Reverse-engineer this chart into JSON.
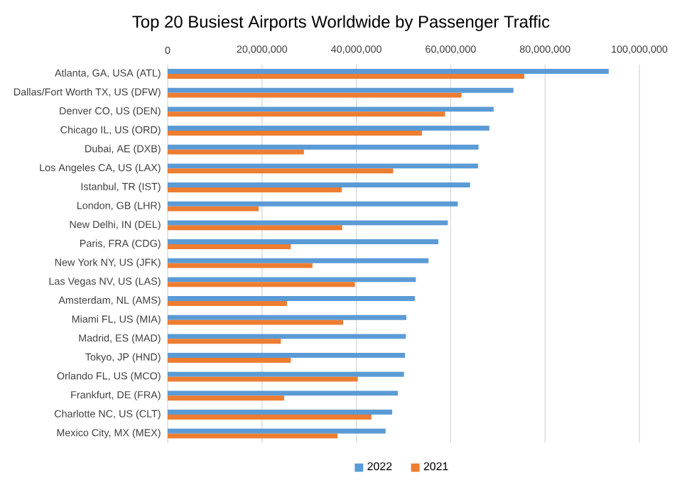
{
  "chart_data": {
    "type": "bar",
    "orientation": "horizontal",
    "title": "Top 20 Busiest Airports Worldwide by Passenger Traffic",
    "categories": [
      "Atlanta, GA, USA (ATL)",
      "Dallas/Fort Worth TX, US (DFW)",
      "Denver CO, US (DEN)",
      "Chicago IL, US (ORD)",
      "Dubai, AE (DXB)",
      "Los Angeles CA, US (LAX)",
      "Istanbul, TR (IST)",
      "London, GB (LHR)",
      "New Delhi, IN (DEL)",
      "Paris, FRA (CDG)",
      "New York NY, US (JFK)",
      "Las Vegas NV, US (LAS)",
      "Amsterdam, NL (AMS)",
      "Miami FL, US (MIA)",
      "Madrid, ES (MAD)",
      "Tokyo, JP (HND)",
      "Orlando FL, US (MCO)",
      "Frankfurt, DE (FRA)",
      "Charlotte NC, US (CLT)",
      "Mexico City, MX (MEX)"
    ],
    "series": [
      {
        "name": "2022",
        "color": "#5b9bd5",
        "values": [
          93500000,
          73300000,
          69100000,
          68200000,
          65900000,
          65800000,
          64100000,
          61500000,
          59400000,
          57400000,
          55300000,
          52600000,
          52400000,
          50600000,
          50500000,
          50300000,
          50100000,
          48800000,
          47600000,
          46200000
        ]
      },
      {
        "name": "2021",
        "color": "#ed7d31",
        "values": [
          75600000,
          62300000,
          58800000,
          53900000,
          28900000,
          47800000,
          36900000,
          19300000,
          37000000,
          26100000,
          30700000,
          39700000,
          25300000,
          37200000,
          24000000,
          26100000,
          40300000,
          24700000,
          43200000,
          36000000
        ]
      }
    ],
    "xlim": [
      0,
      100000000
    ],
    "xticks": [
      {
        "value": 0,
        "label": "0"
      },
      {
        "value": 20000000,
        "label": "20,000,000"
      },
      {
        "value": 40000000,
        "label": "40,000,000"
      },
      {
        "value": 60000000,
        "label": "60,000,000"
      },
      {
        "value": 80000000,
        "label": "80,000,000"
      },
      {
        "value": 100000000,
        "label": "100,000,000"
      }
    ],
    "grid": "x",
    "legend": "bottom"
  }
}
